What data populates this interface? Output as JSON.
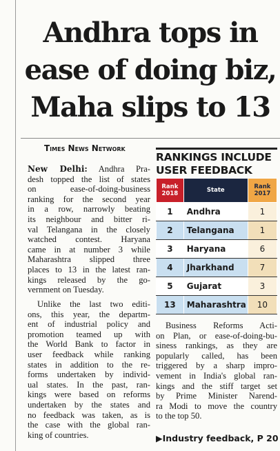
{
  "headline": {
    "lines": [
      "Andhra tops in",
      "ease of doing biz,",
      "Maha slips to 13"
    ]
  },
  "byline": "Times News Network",
  "body": {
    "dateline": "New Delhi:",
    "paragraphs": [
      [
        "Andhra Pra-",
        "desh topped the list of states",
        "on ease-of-doing-business",
        "ranking for the second year",
        "in a row, narrowly beating",
        "its neighbour and bitter ri-",
        "val Telangana in the closely",
        "watched contest. Haryana",
        "came in at number 3 while",
        "Maharashtra slipped three",
        "places to 13 in the latest ran-",
        "kings released by the go-",
        "vernment on Tuesday."
      ],
      [
        "Unlike the last two editi-",
        "ons, this year, the departm-",
        "ent of industrial policy and",
        "promotion teamed up with",
        "the World Bank to factor in",
        "user feedback while ranking",
        "states in addition to the re-",
        "forms undertaken by individ-",
        "ual states. In the past, ran-",
        "kings were based on reforms",
        "undertaken by the states and",
        "no feedback was taken, as is",
        "the case with the global ran-",
        "king of countries."
      ],
      [
        "Business Reforms Acti-",
        "on Plan, or ease-of-doing-bu-",
        "siness rankings, as they are",
        "popularly called, has been",
        "triggered by a sharp impro-",
        "vement in India's global ran-",
        "kings and the stiff target set",
        "by Prime Minister Narend-",
        "ra Modi to move the country",
        "to the top 50."
      ]
    ]
  },
  "table": {
    "title": "RANKINGS INCLUDE USER FEEDBACK",
    "header": [
      "Rank 2018",
      "State",
      "Rank 2017"
    ],
    "rows": [
      [
        "1",
        "Andhra",
        "1"
      ],
      [
        "2",
        "Telangana",
        "1"
      ],
      [
        "3",
        "Haryana",
        "6"
      ],
      [
        "4",
        "Jharkhand",
        "7"
      ],
      [
        "5",
        "Gujarat",
        "3"
      ],
      [
        "13",
        "Maharashtra",
        "10"
      ]
    ]
  },
  "footer": "Industry feedback, P 20"
}
